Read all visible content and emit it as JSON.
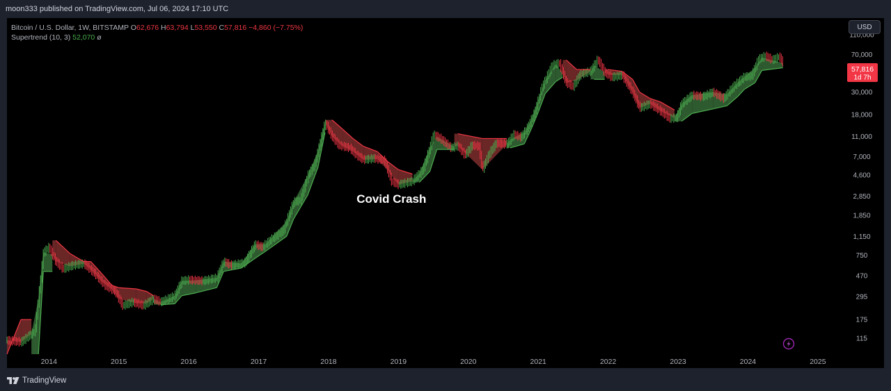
{
  "header": {
    "published": "moon333 published on TradingView.com, Jul 06, 2024 17:10 UTC"
  },
  "legend": {
    "symbol": "Bitcoin / U.S. Dollar, 1W, BITSTAMP",
    "open_label": "O",
    "open": "62,676",
    "high_label": "H",
    "high": "63,794",
    "low_label": "L",
    "low": "53,550",
    "close_label": "C",
    "close": "57,816",
    "change": "−4,860 (−7.75%)",
    "indicator": "Supertrend (10, 3)",
    "indicator_value": "52,070",
    "indicator_extra": "ø"
  },
  "currency_button": "USD",
  "price_tag": {
    "price": "57,816",
    "countdown": "1d 7h"
  },
  "footer": {
    "brand": "TradingView"
  },
  "colors": {
    "up": "#4caf50",
    "down": "#f23645",
    "fill_up": "#2e5a2f",
    "fill_down": "#6b2626",
    "background": "#000000",
    "label": "#b2b5be"
  },
  "icons": {
    "logo": "tradingview-logo-icon",
    "lightning": "lightning-icon"
  },
  "chart_data": {
    "type": "line",
    "title": "",
    "y_scale": "log",
    "ylim": [
      80,
      160000
    ],
    "xlim": [
      2013.4,
      2025.25
    ],
    "y_ticks": [
      {
        "label": "110,000",
        "value": 110000
      },
      {
        "label": "70,000",
        "value": 70000
      },
      {
        "label": "30,000",
        "value": 30000
      },
      {
        "label": "18,000",
        "value": 18000
      },
      {
        "label": "11,000",
        "value": 11000
      },
      {
        "label": "7,000",
        "value": 7000
      },
      {
        "label": "4,600",
        "value": 4600
      },
      {
        "label": "2,850",
        "value": 2850
      },
      {
        "label": "1,850",
        "value": 1850
      },
      {
        "label": "1,150",
        "value": 1150
      },
      {
        "label": "750",
        "value": 750
      },
      {
        "label": "470",
        "value": 470
      },
      {
        "label": "295",
        "value": 295
      },
      {
        "label": "175",
        "value": 175
      },
      {
        "label": "115",
        "value": 115
      }
    ],
    "x_ticks": [
      {
        "label": "2014",
        "value": 2014
      },
      {
        "label": "2015",
        "value": 2015
      },
      {
        "label": "2016",
        "value": 2016
      },
      {
        "label": "2017",
        "value": 2017
      },
      {
        "label": "2018",
        "value": 2018
      },
      {
        "label": "2019",
        "value": 2019
      },
      {
        "label": "2020",
        "value": 2020
      },
      {
        "label": "2021",
        "value": 2021
      },
      {
        "label": "2022",
        "value": 2022
      },
      {
        "label": "2023",
        "value": 2023
      },
      {
        "label": "2024",
        "value": 2024
      },
      {
        "label": "2025",
        "value": 2025
      }
    ],
    "series": [
      {
        "series_type": "price",
        "points": [
          [
            2013.4,
            110
          ],
          [
            2013.6,
            105
          ],
          [
            2013.8,
            135
          ],
          [
            2013.92,
            800
          ],
          [
            2014.0,
            900
          ],
          [
            2014.1,
            650
          ],
          [
            2014.2,
            550
          ],
          [
            2014.35,
            600
          ],
          [
            2014.5,
            620
          ],
          [
            2014.65,
            500
          ],
          [
            2014.8,
            380
          ],
          [
            2014.95,
            330
          ],
          [
            2015.05,
            240
          ],
          [
            2015.2,
            260
          ],
          [
            2015.35,
            240
          ],
          [
            2015.5,
            280
          ],
          [
            2015.6,
            260
          ],
          [
            2015.8,
            300
          ],
          [
            2015.9,
            420
          ],
          [
            2016.0,
            430
          ],
          [
            2016.2,
            420
          ],
          [
            2016.4,
            450
          ],
          [
            2016.5,
            650
          ],
          [
            2016.6,
            600
          ],
          [
            2016.8,
            630
          ],
          [
            2016.95,
            960
          ],
          [
            2017.05,
            900
          ],
          [
            2017.2,
            1100
          ],
          [
            2017.35,
            1300
          ],
          [
            2017.5,
            2500
          ],
          [
            2017.6,
            2600
          ],
          [
            2017.7,
            4500
          ],
          [
            2017.8,
            5800
          ],
          [
            2017.95,
            15000
          ],
          [
            2018.05,
            11000
          ],
          [
            2018.15,
            9000
          ],
          [
            2018.3,
            8500
          ],
          [
            2018.4,
            7200
          ],
          [
            2018.5,
            6500
          ],
          [
            2018.65,
            6700
          ],
          [
            2018.8,
            6400
          ],
          [
            2018.9,
            4000
          ],
          [
            2019.0,
            3700
          ],
          [
            2019.2,
            4000
          ],
          [
            2019.35,
            5200
          ],
          [
            2019.45,
            8500
          ],
          [
            2019.5,
            11500
          ],
          [
            2019.6,
            10500
          ],
          [
            2019.75,
            8500
          ],
          [
            2019.85,
            8900
          ],
          [
            2019.95,
            7200
          ],
          [
            2020.05,
            9000
          ],
          [
            2020.15,
            8800
          ],
          [
            2020.2,
            5200
          ],
          [
            2020.3,
            7500
          ],
          [
            2020.4,
            9500
          ],
          [
            2020.55,
            9200
          ],
          [
            2020.65,
            11500
          ],
          [
            2020.75,
            10800
          ],
          [
            2020.85,
            13500
          ],
          [
            2020.95,
            19000
          ],
          [
            2021.05,
            33000
          ],
          [
            2021.2,
            55000
          ],
          [
            2021.3,
            58000
          ],
          [
            2021.4,
            37000
          ],
          [
            2021.5,
            34000
          ],
          [
            2021.6,
            45000
          ],
          [
            2021.75,
            48000
          ],
          [
            2021.85,
            63000
          ],
          [
            2021.95,
            47000
          ],
          [
            2022.05,
            42000
          ],
          [
            2022.2,
            44000
          ],
          [
            2022.35,
            30000
          ],
          [
            2022.45,
            21000
          ],
          [
            2022.6,
            23000
          ],
          [
            2022.75,
            19500
          ],
          [
            2022.88,
            16500
          ],
          [
            2022.98,
            16800
          ],
          [
            2023.05,
            23000
          ],
          [
            2023.2,
            28000
          ],
          [
            2023.35,
            27000
          ],
          [
            2023.5,
            30000
          ],
          [
            2023.65,
            26000
          ],
          [
            2023.8,
            34500
          ],
          [
            2023.95,
            42500
          ],
          [
            2024.05,
            43000
          ],
          [
            2024.15,
            63000
          ],
          [
            2024.25,
            68000
          ],
          [
            2024.35,
            62000
          ],
          [
            2024.45,
            67000
          ],
          [
            2024.5,
            57816
          ]
        ]
      },
      {
        "series_type": "supertrend",
        "points": [
          [
            2013.4,
            80,
            -1
          ],
          [
            2013.6,
            175,
            -1
          ],
          [
            2013.75,
            175,
            -1
          ],
          [
            2013.85,
            80,
            1
          ],
          [
            2013.92,
            520,
            1
          ],
          [
            2014.05,
            520,
            1
          ],
          [
            2014.1,
            1050,
            -1
          ],
          [
            2014.3,
            780,
            -1
          ],
          [
            2014.5,
            650,
            -1
          ],
          [
            2014.6,
            650,
            -1
          ],
          [
            2014.75,
            500,
            -1
          ],
          [
            2014.9,
            380,
            -1
          ],
          [
            2015.0,
            360,
            -1
          ],
          [
            2015.25,
            350,
            -1
          ],
          [
            2015.4,
            330,
            -1
          ],
          [
            2015.5,
            300,
            -1
          ],
          [
            2015.6,
            245,
            1
          ],
          [
            2015.8,
            250,
            1
          ],
          [
            2015.9,
            300,
            1
          ],
          [
            2016.1,
            320,
            1
          ],
          [
            2016.4,
            360,
            1
          ],
          [
            2016.5,
            520,
            1
          ],
          [
            2016.75,
            560,
            1
          ],
          [
            2016.95,
            700,
            1
          ],
          [
            2017.1,
            820,
            1
          ],
          [
            2017.4,
            1150,
            1
          ],
          [
            2017.5,
            1700,
            1
          ],
          [
            2017.7,
            2900,
            1
          ],
          [
            2017.85,
            5500,
            1
          ],
          [
            2017.95,
            12000,
            1
          ],
          [
            2018.05,
            16000,
            -1
          ],
          [
            2018.2,
            13000,
            -1
          ],
          [
            2018.35,
            10500,
            -1
          ],
          [
            2018.5,
            8800,
            -1
          ],
          [
            2018.7,
            7800,
            -1
          ],
          [
            2018.85,
            6200,
            -1
          ],
          [
            2019.0,
            5200,
            -1
          ],
          [
            2019.2,
            4700,
            -1
          ],
          [
            2019.3,
            3900,
            1
          ],
          [
            2019.45,
            5000,
            1
          ],
          [
            2019.55,
            8200,
            1
          ],
          [
            2019.8,
            8200,
            1
          ],
          [
            2019.85,
            11700,
            -1
          ],
          [
            2020.2,
            10500,
            -1
          ],
          [
            2020.55,
            10500,
            -1
          ],
          [
            2020.6,
            8500,
            1
          ],
          [
            2020.8,
            9300,
            1
          ],
          [
            2020.9,
            13000,
            1
          ],
          [
            2021.0,
            19000,
            1
          ],
          [
            2021.1,
            29000,
            1
          ],
          [
            2021.25,
            38000,
            1
          ],
          [
            2021.35,
            42000,
            1
          ],
          [
            2021.4,
            62000,
            -1
          ],
          [
            2021.55,
            50000,
            -1
          ],
          [
            2021.75,
            50000,
            -1
          ],
          [
            2021.8,
            40000,
            1
          ],
          [
            2021.95,
            40000,
            1
          ],
          [
            2022.0,
            50000,
            -1
          ],
          [
            2022.2,
            48000,
            -1
          ],
          [
            2022.35,
            40000,
            -1
          ],
          [
            2022.45,
            30000,
            -1
          ],
          [
            2022.6,
            26000,
            -1
          ],
          [
            2022.75,
            24000,
            -1
          ],
          [
            2022.95,
            20000,
            -1
          ],
          [
            2023.05,
            15500,
            1
          ],
          [
            2023.2,
            18500,
            1
          ],
          [
            2023.5,
            20500,
            1
          ],
          [
            2023.7,
            22000,
            1
          ],
          [
            2023.85,
            27000,
            1
          ],
          [
            2023.95,
            32000,
            1
          ],
          [
            2024.1,
            37000,
            1
          ],
          [
            2024.2,
            49000,
            1
          ],
          [
            2024.5,
            52070,
            1
          ]
        ]
      }
    ],
    "annotations": [
      {
        "text": "Covid Crash",
        "x": 2018.9,
        "y": 2700
      }
    ]
  }
}
